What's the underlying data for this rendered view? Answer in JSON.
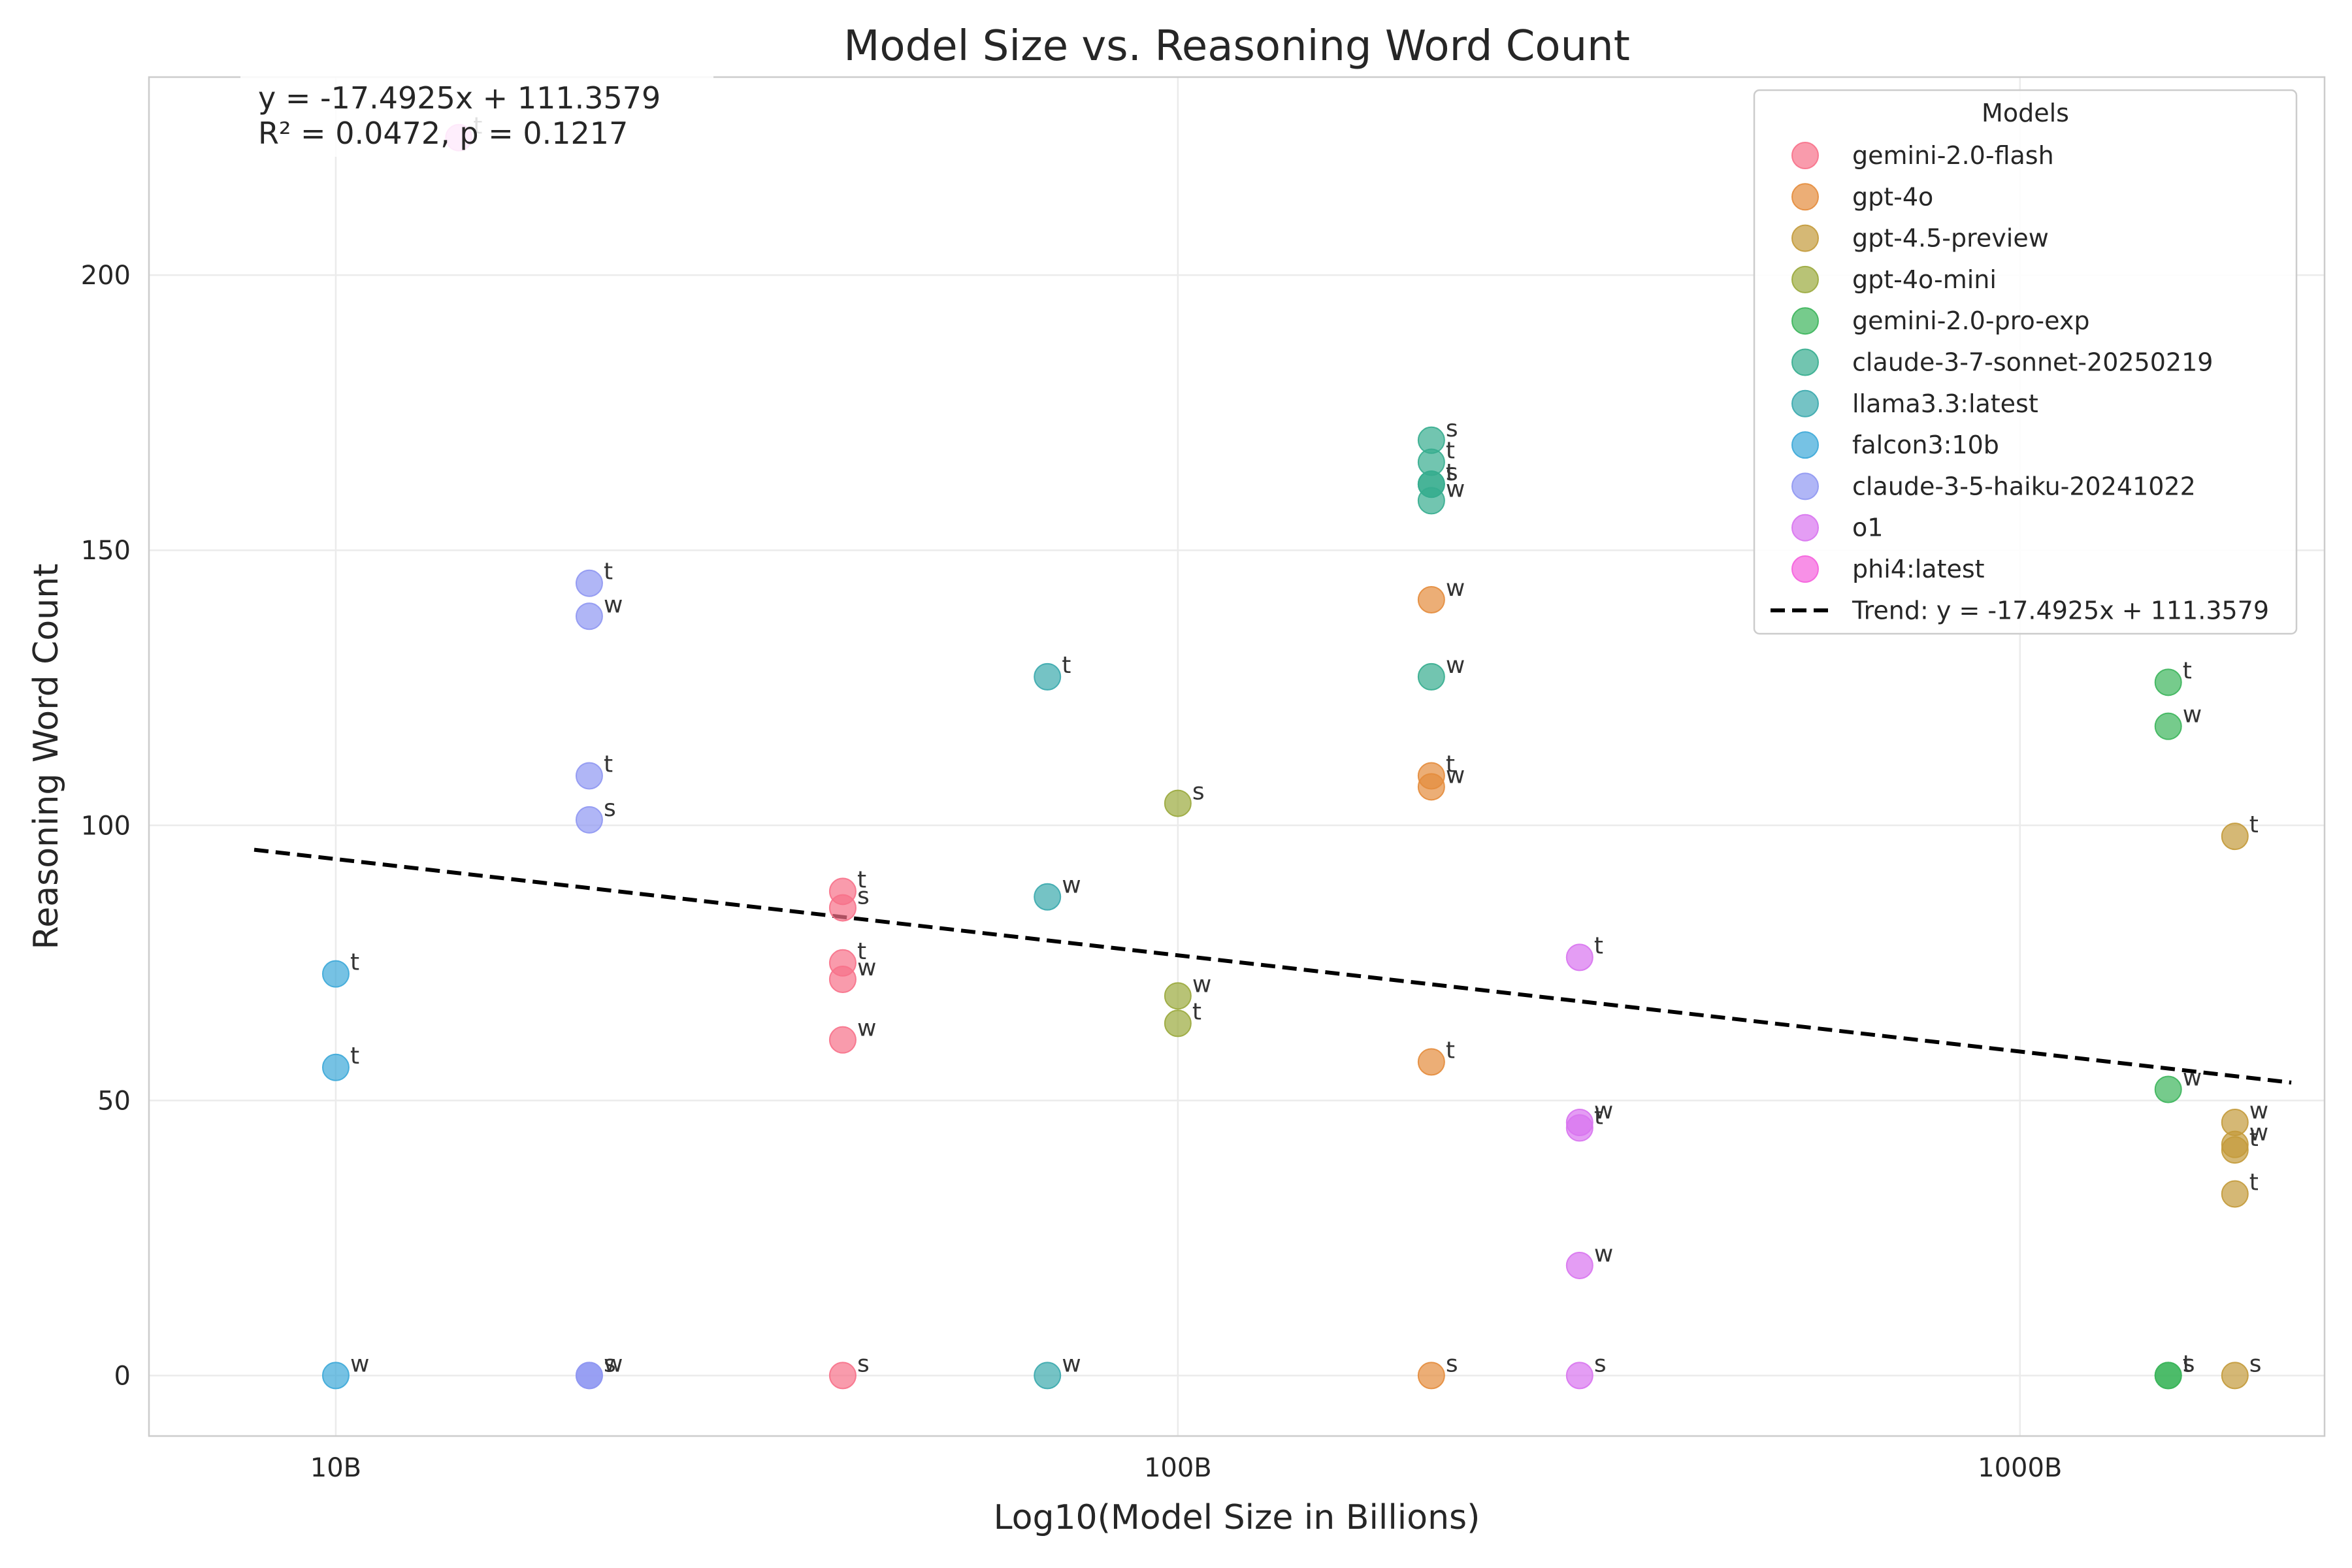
{
  "chart_data": {
    "type": "scatter",
    "title": "Model Size vs. Reasoning Word Count",
    "xlabel": "Log10(Model Size in Billions)",
    "ylabel": "Reasoning Word Count",
    "x_scale": "log",
    "xlim": [
      6.0,
      2300
    ],
    "ylim": [
      -11,
      236
    ],
    "x_ticks": [
      {
        "value": 10,
        "label": "10B"
      },
      {
        "value": 100,
        "label": "100B"
      },
      {
        "value": 1000,
        "label": "1000B"
      }
    ],
    "y_ticks": [
      {
        "value": 0,
        "label": "0"
      },
      {
        "value": 50,
        "label": "50"
      },
      {
        "value": 100,
        "label": "100"
      },
      {
        "value": 150,
        "label": "150"
      },
      {
        "value": 200,
        "label": "200"
      }
    ],
    "grid": true,
    "legend": {
      "title": "Models",
      "position": "top-right"
    },
    "annotation": {
      "line1": "y = -17.4925x + 111.3579",
      "line2": "R² = 0.0472, p = 0.1217",
      "position": "top-left"
    },
    "trend": {
      "label": "Trend: y = -17.4925x + 111.3579",
      "slope": -17.4925,
      "intercept": 111.3579,
      "x_range": [
        8,
        2100
      ],
      "color": "#000000",
      "style": "dashed"
    },
    "series": [
      {
        "name": "gemini-2.0-flash",
        "color": "#f77189",
        "points": [
          {
            "x": 40,
            "y": 88,
            "label": "t"
          },
          {
            "x": 40,
            "y": 85,
            "label": "s"
          },
          {
            "x": 40,
            "y": 75,
            "label": "t"
          },
          {
            "x": 40,
            "y": 72,
            "label": "w"
          },
          {
            "x": 40,
            "y": 61,
            "label": "w"
          },
          {
            "x": 40,
            "y": 0,
            "label": "s"
          }
        ]
      },
      {
        "name": "gpt-4o",
        "color": "#e48c3c",
        "points": [
          {
            "x": 200,
            "y": 141,
            "label": "w"
          },
          {
            "x": 200,
            "y": 109,
            "label": "t"
          },
          {
            "x": 200,
            "y": 107,
            "label": "w"
          },
          {
            "x": 200,
            "y": 57,
            "label": "t"
          },
          {
            "x": 200,
            "y": 0,
            "label": "s"
          }
        ]
      },
      {
        "name": "gpt-4.5-preview",
        "color": "#c39a3a",
        "points": [
          {
            "x": 1800,
            "y": 98,
            "label": "t"
          },
          {
            "x": 1800,
            "y": 46,
            "label": "w"
          },
          {
            "x": 1800,
            "y": 42,
            "label": "w"
          },
          {
            "x": 1800,
            "y": 41,
            "label": "t"
          },
          {
            "x": 1800,
            "y": 33,
            "label": "t"
          },
          {
            "x": 1800,
            "y": 0,
            "label": "s"
          }
        ]
      },
      {
        "name": "gpt-4o-mini",
        "color": "#9aa93c",
        "points": [
          {
            "x": 100,
            "y": 104,
            "label": "s"
          },
          {
            "x": 100,
            "y": 69,
            "label": "w"
          },
          {
            "x": 100,
            "y": 64,
            "label": "t"
          }
        ]
      },
      {
        "name": "gemini-2.0-pro-exp",
        "color": "#3cb55b",
        "points": [
          {
            "x": 1500,
            "y": 126,
            "label": "t"
          },
          {
            "x": 1500,
            "y": 118,
            "label": "w"
          },
          {
            "x": 1500,
            "y": 52,
            "label": "w"
          },
          {
            "x": 1500,
            "y": 0,
            "label": "t"
          },
          {
            "x": 1500,
            "y": 0,
            "label": "s"
          }
        ]
      },
      {
        "name": "claude-3-7-sonnet-20250219",
        "color": "#36ad8f",
        "points": [
          {
            "x": 200,
            "y": 170,
            "label": "s"
          },
          {
            "x": 200,
            "y": 166,
            "label": "t"
          },
          {
            "x": 200,
            "y": 162,
            "label": "t"
          },
          {
            "x": 200,
            "y": 162,
            "label": "s"
          },
          {
            "x": 200,
            "y": 159,
            "label": "w"
          },
          {
            "x": 200,
            "y": 127,
            "label": "w"
          }
        ]
      },
      {
        "name": "llama3.3:latest",
        "color": "#3aa9ad",
        "points": [
          {
            "x": 70,
            "y": 127,
            "label": "t"
          },
          {
            "x": 70,
            "y": 87,
            "label": "w"
          },
          {
            "x": 70,
            "y": 0,
            "label": "w"
          }
        ]
      },
      {
        "name": "falcon3:10b",
        "color": "#3ca8d8",
        "points": [
          {
            "x": 10,
            "y": 73,
            "label": "t"
          },
          {
            "x": 10,
            "y": 56,
            "label": "t"
          },
          {
            "x": 10,
            "y": 0,
            "label": "w"
          }
        ]
      },
      {
        "name": "claude-3-5-haiku-20241022",
        "color": "#8f97f2",
        "points": [
          {
            "x": 20,
            "y": 144,
            "label": "t"
          },
          {
            "x": 20,
            "y": 138,
            "label": "w"
          },
          {
            "x": 20,
            "y": 109,
            "label": "t"
          },
          {
            "x": 20,
            "y": 101,
            "label": "s"
          },
          {
            "x": 20,
            "y": 0,
            "label": "s"
          },
          {
            "x": 20,
            "y": 0,
            "label": "w"
          }
        ]
      },
      {
        "name": "o1",
        "color": "#d874f0",
        "points": [
          {
            "x": 300,
            "y": 76,
            "label": "t"
          },
          {
            "x": 300,
            "y": 46,
            "label": "w"
          },
          {
            "x": 300,
            "y": 45,
            "label": "t"
          },
          {
            "x": 300,
            "y": 20,
            "label": "w"
          },
          {
            "x": 300,
            "y": 0,
            "label": "s"
          }
        ]
      },
      {
        "name": "phi4:latest",
        "color": "#f561dd",
        "points": [
          {
            "x": 14,
            "y": 225,
            "label": "t"
          }
        ]
      }
    ]
  }
}
